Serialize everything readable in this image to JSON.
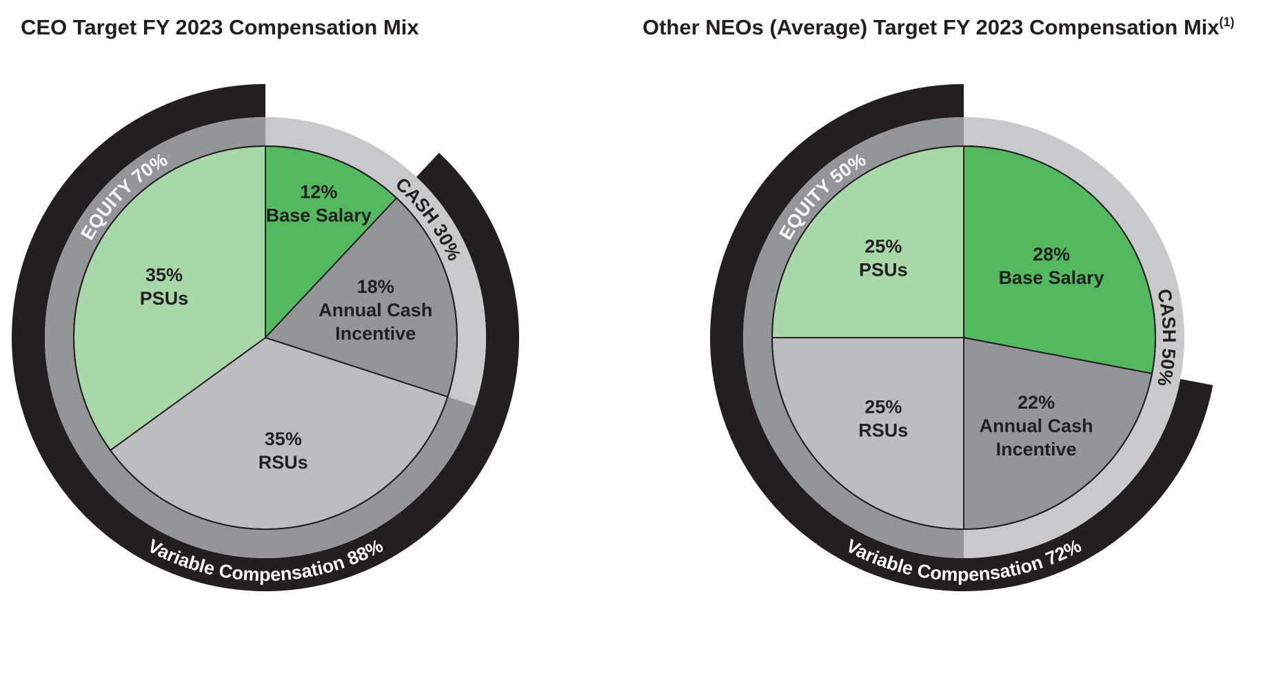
{
  "colors": {
    "base_salary": "#52b95f",
    "annual_cash_incentive": "#939598",
    "psus": "#a8d8a8",
    "rsus": "#bcbdc1",
    "equity_ring": "#939598",
    "cash_ring": "#c8c9cb",
    "variable_ring": "#231f20",
    "outline": "#231f20",
    "title": "#231f20"
  },
  "chart_data": [
    {
      "type": "pie",
      "title": "CEO Target FY 2023 Compensation Mix",
      "title_superscript": "",
      "slices": [
        {
          "key": "base_salary",
          "pct_label": "12%",
          "label_lines": [
            "Base Salary"
          ],
          "value": 12
        },
        {
          "key": "annual_cash_incentive",
          "pct_label": "18%",
          "label_lines": [
            "Annual Cash",
            "Incentive"
          ],
          "value": 18
        },
        {
          "key": "rsus",
          "pct_label": "35%",
          "label_lines": [
            "RSUs"
          ],
          "value": 35
        },
        {
          "key": "psus",
          "pct_label": "35%",
          "label_lines": [
            "PSUs"
          ],
          "value": 35
        }
      ],
      "rings": {
        "cash": {
          "label": "CASH 30%",
          "value": 30
        },
        "equity": {
          "label": "EQUITY 70%",
          "value": 70
        },
        "variable": {
          "label": "Variable Compensation 88%",
          "value": 88
        }
      }
    },
    {
      "type": "pie",
      "title": "Other NEOs (Average) Target FY 2023 Compensation Mix",
      "title_superscript": "(1)",
      "slices": [
        {
          "key": "base_salary",
          "pct_label": "28%",
          "label_lines": [
            "Base Salary"
          ],
          "value": 28
        },
        {
          "key": "annual_cash_incentive",
          "pct_label": "22%",
          "label_lines": [
            "Annual Cash",
            "Incentive"
          ],
          "value": 22
        },
        {
          "key": "rsus",
          "pct_label": "25%",
          "label_lines": [
            "RSUs"
          ],
          "value": 25
        },
        {
          "key": "psus",
          "pct_label": "25%",
          "label_lines": [
            "PSUs"
          ],
          "value": 25
        }
      ],
      "rings": {
        "cash": {
          "label": "CASH 50%",
          "value": 50
        },
        "equity": {
          "label": "EQUITY 50%",
          "value": 50
        },
        "variable": {
          "label": "Variable Compensation 72%",
          "value": 72
        }
      }
    }
  ]
}
